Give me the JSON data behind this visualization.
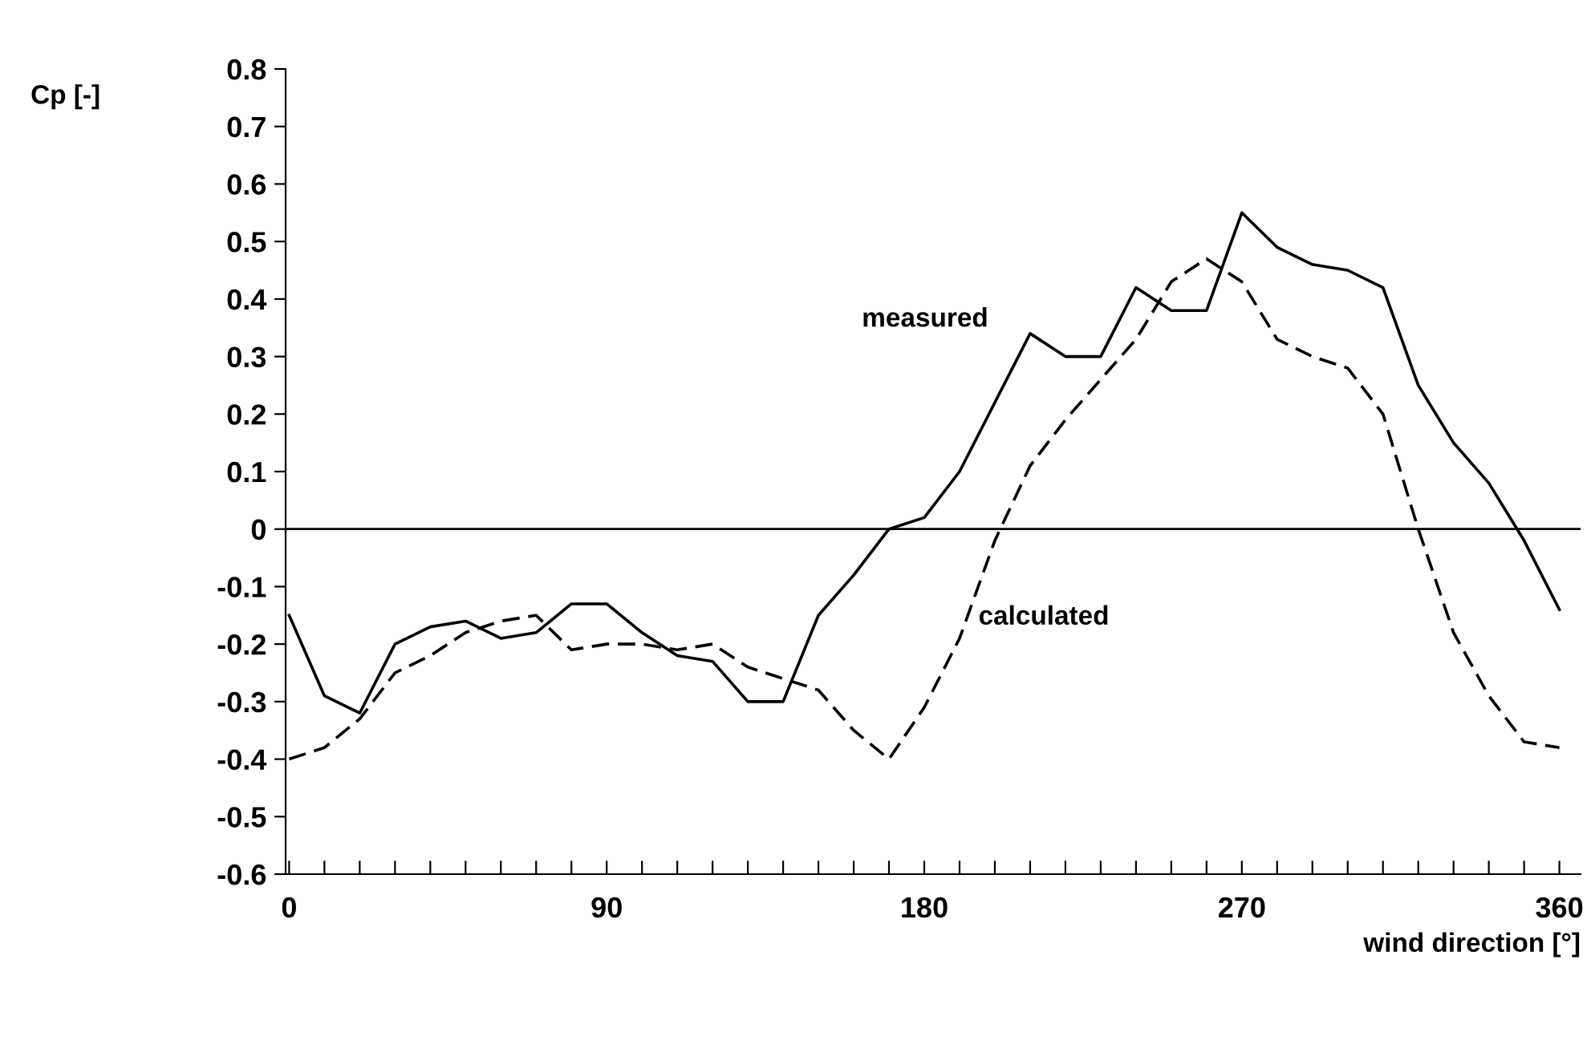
{
  "chart_data": {
    "type": "line",
    "xlabel": "wind direction [°]",
    "ylabel": "Cp [-]",
    "x": [
      0,
      10,
      20,
      30,
      40,
      50,
      60,
      70,
      80,
      90,
      100,
      110,
      120,
      130,
      140,
      150,
      160,
      170,
      180,
      190,
      200,
      210,
      220,
      230,
      240,
      250,
      260,
      270,
      280,
      290,
      300,
      310,
      320,
      330,
      340,
      350,
      360
    ],
    "series": [
      {
        "name": "measured",
        "color": "#000000",
        "line_style": "solid",
        "values": [
          -0.15,
          -0.29,
          -0.32,
          -0.2,
          -0.17,
          -0.16,
          -0.19,
          -0.18,
          -0.13,
          -0.13,
          -0.18,
          -0.22,
          -0.23,
          -0.3,
          -0.3,
          -0.15,
          -0.08,
          0.0,
          0.02,
          0.1,
          0.22,
          0.34,
          0.3,
          0.3,
          0.42,
          0.38,
          0.38,
          0.55,
          0.49,
          0.46,
          0.45,
          0.42,
          0.25,
          0.15,
          0.08,
          -0.02,
          -0.14
        ]
      },
      {
        "name": "calculated",
        "color": "#000000",
        "line_style": "dashed",
        "values": [
          -0.4,
          -0.38,
          -0.33,
          -0.25,
          -0.22,
          -0.18,
          -0.16,
          -0.15,
          -0.21,
          -0.2,
          -0.2,
          -0.21,
          -0.2,
          -0.24,
          -0.26,
          -0.28,
          -0.35,
          -0.4,
          -0.31,
          -0.19,
          -0.02,
          0.11,
          0.19,
          0.26,
          0.33,
          0.43,
          0.47,
          0.43,
          0.33,
          0.3,
          0.28,
          0.2,
          0.0,
          -0.18,
          -0.29,
          -0.37,
          -0.38
        ]
      }
    ],
    "xlim": [
      -1,
      366
    ],
    "xticks": [
      0,
      {
        "value": 10,
        "label": null
      },
      {
        "value": 20,
        "label": null
      },
      {
        "value": 30,
        "label": null
      },
      {
        "value": 40,
        "label": null
      },
      {
        "value": 50,
        "label": null
      },
      {
        "value": 60,
        "label": null
      },
      {
        "value": 70,
        "label": null
      },
      {
        "value": 80,
        "label": null
      },
      90,
      {
        "value": 100,
        "label": null
      },
      {
        "value": 110,
        "label": null
      },
      {
        "value": 120,
        "label": null
      },
      {
        "value": 130,
        "label": null
      },
      {
        "value": 140,
        "label": null
      },
      {
        "value": 150,
        "label": null
      },
      {
        "value": 160,
        "label": null
      },
      {
        "value": 170,
        "label": null
      },
      180,
      {
        "value": 190,
        "label": null
      },
      {
        "value": 200,
        "label": null
      },
      {
        "value": 210,
        "label": null
      },
      {
        "value": 220,
        "label": null
      },
      {
        "value": 230,
        "label": null
      },
      {
        "value": 240,
        "label": null
      },
      {
        "value": 250,
        "label": null
      },
      {
        "value": 260,
        "label": null
      },
      270,
      {
        "value": 280,
        "label": null
      },
      {
        "value": 290,
        "label": null
      },
      {
        "value": 300,
        "label": null
      },
      {
        "value": 310,
        "label": null
      },
      {
        "value": 320,
        "label": null
      },
      {
        "value": 330,
        "label": null
      },
      {
        "value": 340,
        "label": null
      },
      {
        "value": 350,
        "label": null
      },
      360
    ],
    "ylim": [
      -0.6,
      0.8
    ],
    "yticks": [
      {
        "value": 0.8,
        "label": "0.8"
      },
      {
        "value": 0.7,
        "label": "0.7"
      },
      {
        "value": 0.6,
        "label": "0.6"
      },
      {
        "value": 0.5,
        "label": "0.5"
      },
      {
        "value": 0.4,
        "label": "0.4"
      },
      {
        "value": 0.3,
        "label": "0.3"
      },
      {
        "value": 0.2,
        "label": "0.2"
      },
      {
        "value": 0.1,
        "label": "0.1"
      },
      0,
      {
        "value": -0.1,
        "label": "-0.1"
      },
      {
        "value": -0.2,
        "label": "-0.2"
      },
      {
        "value": -0.3,
        "label": "-0.3"
      },
      {
        "value": -0.4,
        "label": "-0.4"
      },
      {
        "value": -0.5,
        "label": "-0.5"
      },
      {
        "value": -0.6,
        "label": "-0.6"
      }
    ],
    "ref_lines": [
      {
        "axis": "y",
        "value": 0,
        "color": "#000000",
        "line_style": "solid"
      }
    ],
    "grid": false,
    "legend": false,
    "marker": "none"
  }
}
